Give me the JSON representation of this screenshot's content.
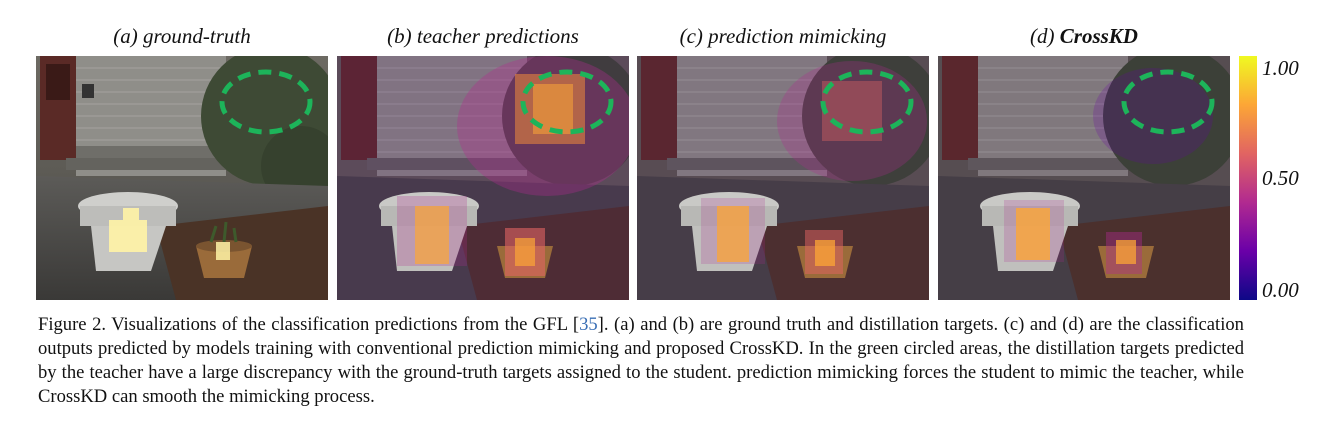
{
  "panels": [
    {
      "label": "(a) ground-truth",
      "bold_part": ""
    },
    {
      "label": "(b) teacher predictions",
      "bold_part": ""
    },
    {
      "label": "(c) prediction mimicking",
      "bold_part": ""
    },
    {
      "label": "(d) ",
      "bold_part": "CrossKD"
    }
  ],
  "colorbar": {
    "ticks": [
      "1.00",
      "0.50",
      "0.00"
    ],
    "colors": [
      "#f0f921",
      "#fca636",
      "#e16462",
      "#b12a90",
      "#6a00a8",
      "#0d0887"
    ]
  },
  "circle_color": "#1db45a",
  "caption": {
    "lead": "Figure 2. Visualizations of the classification predictions from the GFL [",
    "ref": "35",
    "rest": "]. (a) and (b) are ground truth and distillation targets. (c) and (d) are the classification outputs predicted by models training with conventional prediction mimicking and proposed CrossKD. In the green circled areas, the distillation targets predicted by the teacher have a large discrepancy with the ground-truth targets assigned to the student. prediction mimicking forces the student to mimic the teacher, while CrossKD can smooth the mimicking process."
  }
}
